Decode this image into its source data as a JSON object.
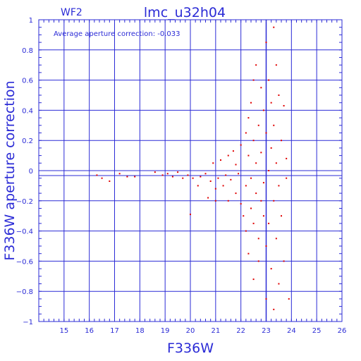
{
  "chart_data": {
    "type": "scatter",
    "title": "lmc_u32h04",
    "chip_label": "WF2",
    "annotation": "Average aperture correction: -0.033",
    "xlabel": "F336W",
    "ylabel": "F336W aperture correction",
    "xlim": [
      14,
      26
    ],
    "ylim": [
      -1,
      1
    ],
    "x_ticks": [
      15,
      16,
      17,
      18,
      19,
      20,
      21,
      22,
      23,
      24,
      25,
      26
    ],
    "y_ticks": [
      -1,
      -0.8,
      -0.6,
      -0.4,
      -0.2,
      0,
      0.2,
      0.4,
      0.6,
      0.8,
      1
    ],
    "y_tick_labels": [
      "−1",
      "−0.8",
      "−0.6",
      "−0.4",
      "−0.2",
      "0",
      "0.2",
      "0.4",
      "0.6",
      "0.8",
      "1"
    ],
    "grid": true,
    "reference_lines": {
      "horizontal": [
        0,
        -0.033
      ],
      "vertical": [
        23
      ]
    },
    "colors": {
      "axes": "#2b2bd6",
      "points": "#e00000"
    },
    "points": [
      [
        16.3,
        -0.03
      ],
      [
        16.5,
        -0.05
      ],
      [
        16.8,
        -0.07
      ],
      [
        17.2,
        -0.02
      ],
      [
        17.5,
        -0.04
      ],
      [
        17.8,
        -0.04
      ],
      [
        18.6,
        -0.01
      ],
      [
        18.9,
        -0.03
      ],
      [
        19.1,
        -0.02
      ],
      [
        19.3,
        -0.04
      ],
      [
        19.5,
        -0.01
      ],
      [
        19.7,
        -0.05
      ],
      [
        19.9,
        -0.03
      ],
      [
        20.0,
        -0.29
      ],
      [
        20.1,
        -0.05
      ],
      [
        20.3,
        -0.1
      ],
      [
        20.4,
        -0.04
      ],
      [
        20.6,
        -0.02
      ],
      [
        20.7,
        -0.18
      ],
      [
        20.8,
        -0.07
      ],
      [
        20.9,
        0.05
      ],
      [
        21.0,
        -0.12
      ],
      [
        21.0,
        -0.2
      ],
      [
        21.1,
        -0.05
      ],
      [
        21.2,
        0.07
      ],
      [
        21.3,
        -0.1
      ],
      [
        21.4,
        -0.03
      ],
      [
        21.5,
        0.1
      ],
      [
        21.5,
        -0.2
      ],
      [
        21.6,
        -0.06
      ],
      [
        21.7,
        0.13
      ],
      [
        21.8,
        -0.15
      ],
      [
        21.8,
        0.04
      ],
      [
        21.9,
        -0.02
      ],
      [
        22.0,
        0.17
      ],
      [
        22.0,
        -0.22
      ],
      [
        22.1,
        -0.3
      ],
      [
        22.2,
        0.25
      ],
      [
        22.2,
        -0.1
      ],
      [
        22.2,
        -0.4
      ],
      [
        22.3,
        0.35
      ],
      [
        22.3,
        0.1
      ],
      [
        22.3,
        -0.55
      ],
      [
        22.4,
        0.45
      ],
      [
        22.4,
        -0.05
      ],
      [
        22.4,
        -0.25
      ],
      [
        22.5,
        0.6
      ],
      [
        22.5,
        0.2
      ],
      [
        22.5,
        -0.35
      ],
      [
        22.5,
        -0.72
      ],
      [
        22.6,
        0.7
      ],
      [
        22.6,
        0.05
      ],
      [
        22.6,
        -0.15
      ],
      [
        22.7,
        0.3
      ],
      [
        22.7,
        -0.45
      ],
      [
        22.7,
        -0.6
      ],
      [
        22.8,
        0.55
      ],
      [
        22.8,
        0.12
      ],
      [
        22.8,
        -0.2
      ],
      [
        22.9,
        0.4
      ],
      [
        22.9,
        -0.3
      ],
      [
        22.9,
        -0.08
      ],
      [
        23.0,
        0.85
      ],
      [
        23.0,
        0.25
      ],
      [
        23.0,
        -0.5
      ],
      [
        23.0,
        -0.85
      ],
      [
        23.1,
        0.6
      ],
      [
        23.1,
        0.0
      ],
      [
        23.1,
        -0.35
      ],
      [
        23.2,
        0.45
      ],
      [
        23.2,
        0.15
      ],
      [
        23.2,
        -0.65
      ],
      [
        23.3,
        0.95
      ],
      [
        23.3,
        0.3
      ],
      [
        23.3,
        -0.2
      ],
      [
        23.3,
        -0.92
      ],
      [
        23.4,
        0.7
      ],
      [
        23.4,
        0.05
      ],
      [
        23.4,
        -0.45
      ],
      [
        23.5,
        0.5
      ],
      [
        23.5,
        -0.1
      ],
      [
        23.5,
        -0.75
      ],
      [
        23.6,
        0.2
      ],
      [
        23.6,
        -0.3
      ],
      [
        23.7,
        0.43
      ],
      [
        23.7,
        -0.6
      ],
      [
        23.8,
        0.08
      ],
      [
        23.8,
        -0.05
      ],
      [
        23.9,
        -0.85
      ]
    ]
  }
}
